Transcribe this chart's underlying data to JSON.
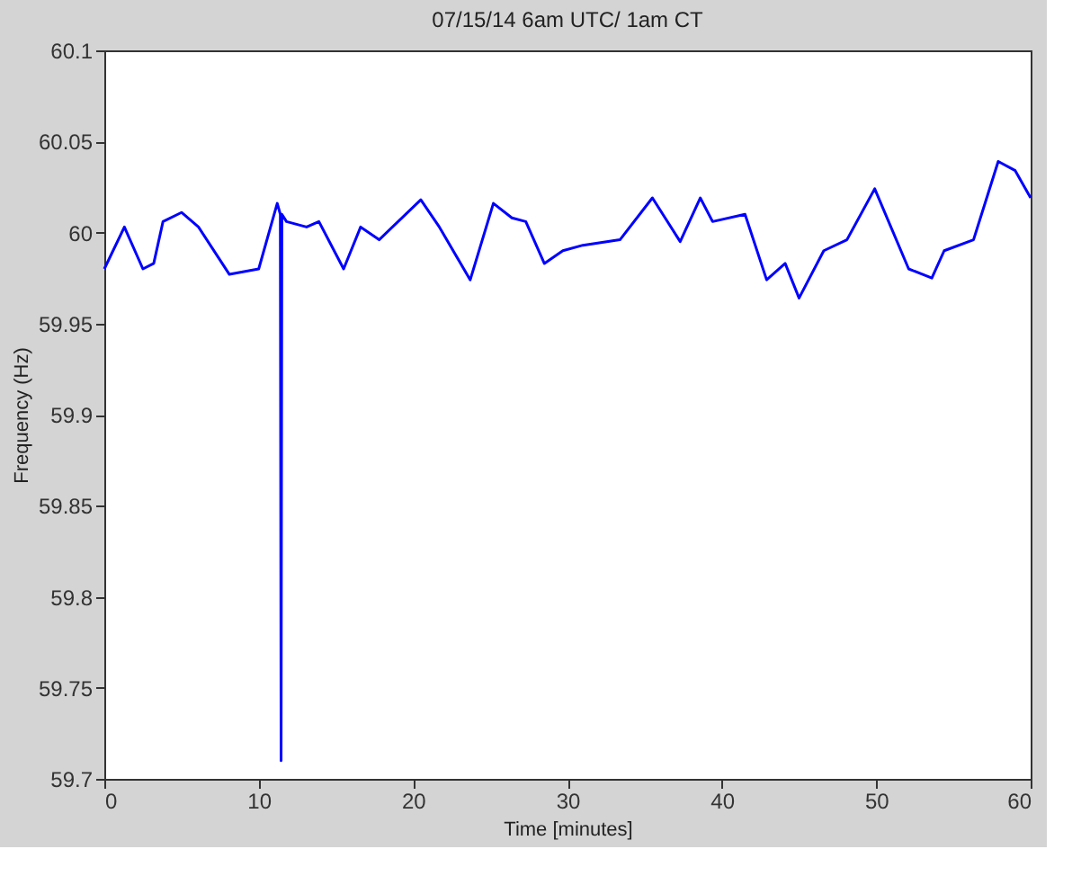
{
  "chart_data": {
    "type": "line",
    "title": "07/15/14 6am UTC/ 1am CT",
    "xlabel": "Time [minutes]",
    "ylabel": "Frequency (Hz)",
    "xlim": [
      0,
      60
    ],
    "xticks": [
      0,
      10,
      20,
      30,
      40,
      50,
      60
    ],
    "ylim": [
      59.7,
      60.1
    ],
    "yticks": [
      59.7,
      59.75,
      59.8,
      59.85,
      59.9,
      59.95,
      60,
      60.05,
      60.1
    ],
    "grid": false,
    "legend": false,
    "series": [
      {
        "color": "#0000ff",
        "x": [
          0,
          1.3,
          2.5,
          3.2,
          3.8,
          5.0,
          6.1,
          8.1,
          10.0,
          11.2,
          11.4,
          11.45,
          11.5,
          11.8,
          13.1,
          13.9,
          15.5,
          16.6,
          17.8,
          20.5,
          21.7,
          23.7,
          25.2,
          26.4,
          27.3,
          28.5,
          29.7,
          31.0,
          33.4,
          35.5,
          37.3,
          38.6,
          39.4,
          41.5,
          42.9,
          44.1,
          45.0,
          46.6,
          48.1,
          49.9,
          52.1,
          53.6,
          54.4,
          56.3,
          57.9,
          59.0,
          60.0
        ],
        "values": [
          59.98,
          60.003,
          59.98,
          59.983,
          60.006,
          60.011,
          60.003,
          59.977,
          59.98,
          60.016,
          60.01,
          59.71,
          60.01,
          60.006,
          60.003,
          60.006,
          59.98,
          60.003,
          59.996,
          60.018,
          60.003,
          59.974,
          60.016,
          60.008,
          60.006,
          59.983,
          59.99,
          59.993,
          59.996,
          60.019,
          59.995,
          60.019,
          60.006,
          60.01,
          59.974,
          59.983,
          59.964,
          59.99,
          59.996,
          60.024,
          59.98,
          59.975,
          59.99,
          59.996,
          60.039,
          60.034,
          60.019
        ]
      }
    ]
  }
}
